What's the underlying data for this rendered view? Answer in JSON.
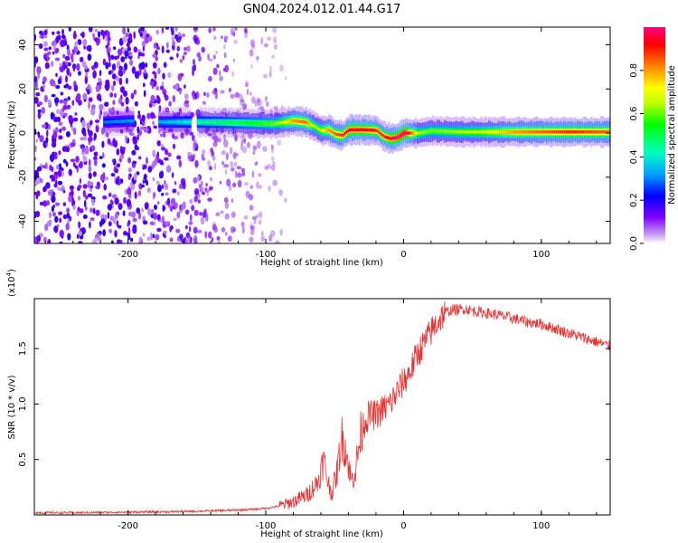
{
  "title": "GN04.2024.012.01.44.G17",
  "chart_data": [
    {
      "type": "heatmap",
      "panel": "top",
      "xlabel": "Height of straight line (km)",
      "ylabel": "Frequency (Hz)",
      "xlim": [
        -268,
        150
      ],
      "ylim": [
        -50,
        48
      ],
      "xticks": [
        -200,
        -100,
        0,
        100
      ],
      "yticks": [
        -40,
        -20,
        0,
        20,
        40
      ],
      "tick_labels_x": [
        "-200",
        "-100",
        "0",
        "100"
      ],
      "tick_labels_y": [
        "-40",
        "-20",
        "0",
        "20",
        "40"
      ],
      "ridge": {
        "x": [
          -215,
          -200,
          -175,
          -160,
          -150,
          -130,
          -110,
          -95,
          -80,
          -72,
          -65,
          -60,
          -55,
          -50,
          -45,
          -40,
          -30,
          -20,
          -15,
          -10,
          -5,
          0,
          10,
          20,
          40,
          60,
          80,
          100,
          120,
          150
        ],
        "y": [
          5,
          5.5,
          5,
          5,
          5,
          4.8,
          4.5,
          4.2,
          5.5,
          5,
          3,
          1,
          1.5,
          -0.5,
          -1,
          1.5,
          1.5,
          1.2,
          -1.5,
          -2.5,
          -2,
          0,
          0,
          1,
          0.5,
          0.5,
          0.5,
          0.5,
          0.5,
          0.5
        ],
        "amplitude": [
          0.2,
          0.22,
          0.25,
          0.3,
          0.35,
          0.4,
          0.45,
          0.5,
          0.7,
          0.75,
          0.55,
          0.6,
          0.7,
          0.75,
          0.8,
          0.85,
          0.85,
          0.8,
          0.8,
          0.85,
          0.9,
          0.95,
          0.55,
          0.5,
          0.55,
          0.6,
          0.7,
          0.75,
          0.8,
          0.75
        ]
      },
      "noise_region_x": [
        -268,
        -110
      ],
      "colorbar": {
        "label": "Normalized spectral amplitude",
        "range": [
          0,
          1
        ],
        "ticks": [
          0.0,
          0.2,
          0.4,
          0.6,
          0.8
        ],
        "tick_labels": [
          "0.0",
          "0.2",
          "0.4",
          "0.6",
          "0.8"
        ],
        "colors": [
          "#ffffff",
          "#c8a0f0",
          "#8000ff",
          "#0000ff",
          "#00a0ff",
          "#00ffc0",
          "#00ff00",
          "#c0ff00",
          "#ffff00",
          "#ff8000",
          "#ff0000",
          "#ff0080"
        ]
      }
    },
    {
      "type": "line",
      "panel": "bottom",
      "xlabel": "Height of straight line (km)",
      "ylabel": "SNR (10 * v/v)",
      "y_multiplier": "(x10",
      "y_multiplier_exp": "4",
      "xlim": [
        -268,
        150
      ],
      "ylim": [
        0.0,
        1.95
      ],
      "xticks": [
        -200,
        -100,
        0,
        100
      ],
      "yticks": [
        0.5,
        1.0,
        1.5
      ],
      "tick_labels_x": [
        "-200",
        "-100",
        "0",
        "100"
      ],
      "tick_labels_y": [
        "0.5",
        "1.0",
        "1.5"
      ],
      "color": "#e83030",
      "series": [
        {
          "x": [
            -268,
            -240,
            -200,
            -160,
            -130,
            -110,
            -100,
            -90,
            -80,
            -70,
            -62,
            -58,
            -55,
            -52,
            -48,
            -45,
            -42,
            -38,
            -35,
            -30,
            -25,
            -20,
            -15,
            -10,
            -5,
            0,
            5,
            10,
            15,
            20,
            25,
            30,
            35,
            40,
            45,
            50,
            60,
            70,
            80,
            90,
            100,
            110,
            120,
            130,
            140,
            150
          ],
          "y": [
            0.02,
            0.02,
            0.025,
            0.03,
            0.04,
            0.05,
            0.06,
            0.08,
            0.12,
            0.18,
            0.3,
            0.5,
            0.3,
            0.2,
            0.4,
            0.7,
            0.6,
            0.3,
            0.4,
            0.8,
            0.9,
            0.9,
            0.95,
            1.0,
            1.1,
            1.2,
            1.3,
            1.45,
            1.55,
            1.65,
            1.75,
            1.82,
            1.85,
            1.85,
            1.86,
            1.84,
            1.82,
            1.8,
            1.77,
            1.74,
            1.72,
            1.68,
            1.64,
            1.6,
            1.56,
            1.52
          ]
        }
      ]
    }
  ]
}
